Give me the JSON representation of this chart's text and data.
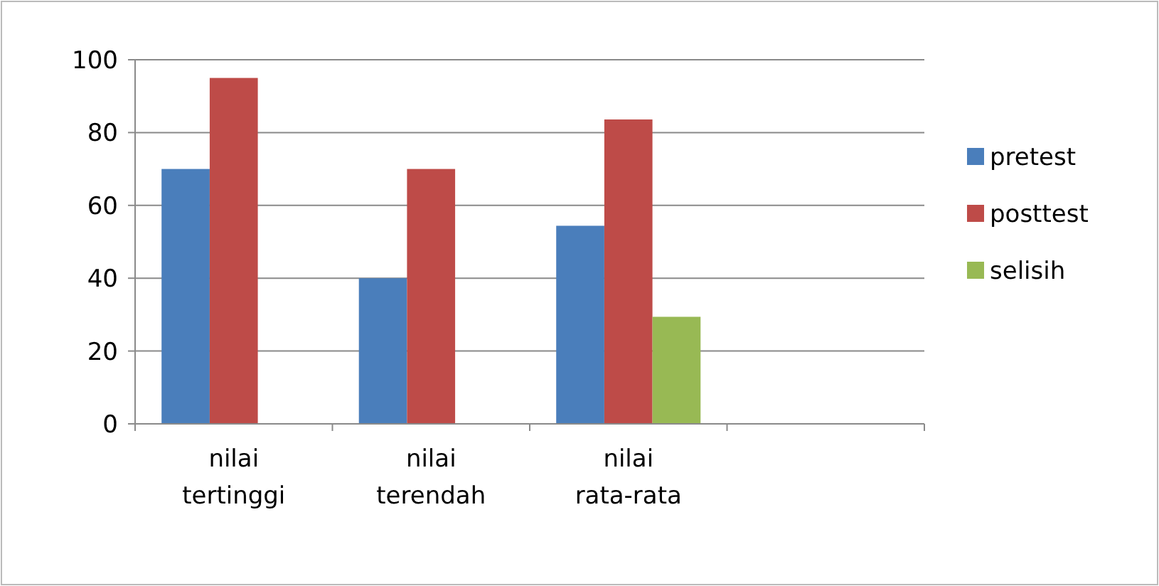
{
  "chart_data": {
    "type": "bar",
    "categories": [
      "nilai tertinggi",
      "nilai terendah",
      "nilai rata-rata",
      null
    ],
    "series": [
      {
        "name": "pretest",
        "color": "#4a7ebb",
        "values": [
          70,
          40,
          54.4,
          null
        ]
      },
      {
        "name": "posttest",
        "color": "#be4b48",
        "values": [
          95,
          70,
          83.6,
          null
        ]
      },
      {
        "name": "selisih",
        "color": "#98b954",
        "values": [
          null,
          null,
          29.4,
          null
        ]
      }
    ],
    "ylim": [
      0,
      100
    ],
    "yticks": [
      0,
      20,
      40,
      60,
      80,
      100
    ],
    "grid": "y",
    "legend": "right"
  }
}
